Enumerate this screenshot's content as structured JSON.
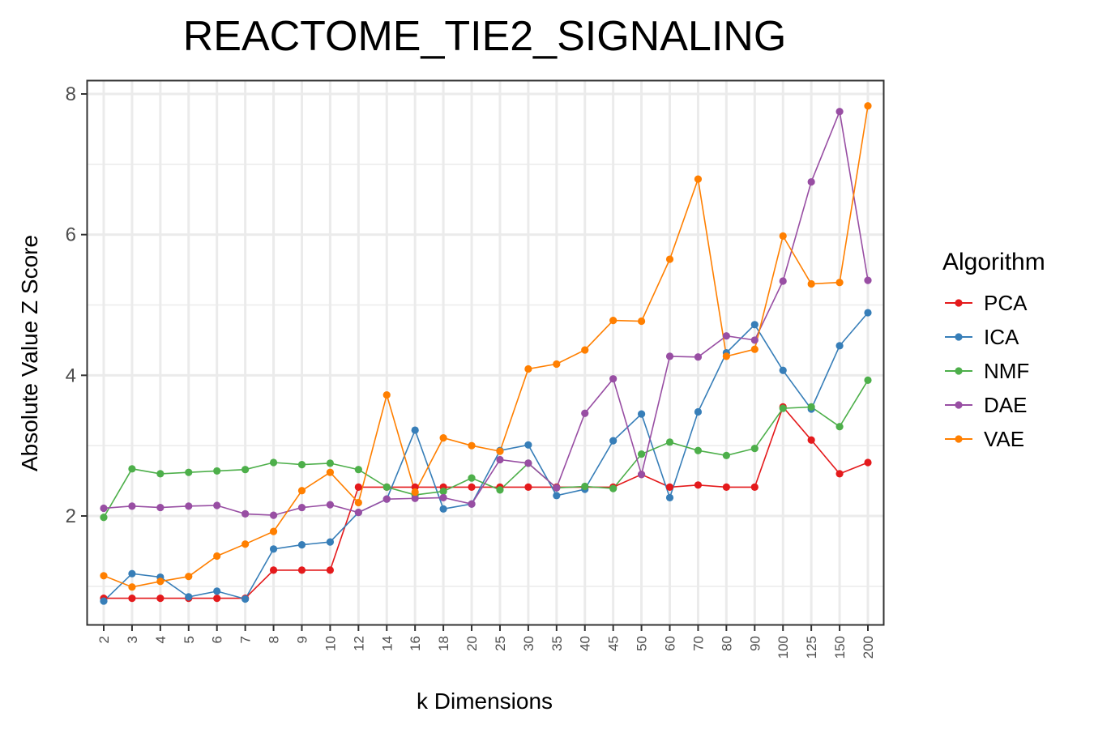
{
  "chart_data": {
    "type": "line",
    "title": "REACTOME_TIE2_SIGNALING",
    "xlabel": "k Dimensions",
    "ylabel": "Absolute Value Z Score",
    "categories": [
      "2",
      "3",
      "4",
      "5",
      "6",
      "7",
      "8",
      "9",
      "10",
      "12",
      "14",
      "16",
      "18",
      "20",
      "25",
      "30",
      "35",
      "40",
      "45",
      "50",
      "60",
      "70",
      "80",
      "90",
      "100",
      "125",
      "150",
      "200"
    ],
    "ylim": [
      0.5,
      8.2
    ],
    "yticks": [
      2,
      4,
      6,
      8
    ],
    "grid": true,
    "legend": {
      "title": "Algorithm",
      "position": "right"
    },
    "series": [
      {
        "name": "PCA",
        "color": "#e41a1c",
        "values": [
          0.83,
          0.83,
          0.83,
          0.83,
          0.83,
          0.83,
          1.23,
          1.23,
          1.23,
          2.41,
          2.41,
          2.41,
          2.41,
          2.41,
          2.41,
          2.41,
          2.41,
          2.41,
          2.41,
          2.59,
          2.41,
          2.44,
          2.41,
          2.41,
          3.55,
          3.08,
          2.6,
          2.76
        ]
      },
      {
        "name": "ICA",
        "color": "#377eb8",
        "values": [
          0.79,
          1.18,
          1.13,
          0.85,
          0.93,
          0.82,
          1.53,
          1.59,
          1.63,
          2.05,
          2.24,
          3.22,
          2.1,
          2.17,
          2.93,
          3.01,
          2.29,
          2.38,
          3.07,
          3.45,
          2.26,
          3.48,
          4.32,
          4.72,
          4.07,
          3.52,
          4.42,
          4.89
        ]
      },
      {
        "name": "NMF",
        "color": "#4daf4a",
        "values": [
          1.98,
          2.67,
          2.6,
          2.62,
          2.64,
          2.66,
          2.76,
          2.73,
          2.75,
          2.66,
          2.41,
          2.3,
          2.35,
          2.54,
          2.37,
          2.75,
          2.4,
          2.42,
          2.39,
          2.88,
          3.05,
          2.93,
          2.86,
          2.96,
          3.53,
          3.55,
          3.27,
          3.93
        ]
      },
      {
        "name": "DAE",
        "color": "#984ea3",
        "values": [
          2.11,
          2.14,
          2.12,
          2.14,
          2.15,
          2.03,
          2.01,
          2.12,
          2.16,
          2.05,
          2.24,
          2.25,
          2.26,
          2.17,
          2.8,
          2.75,
          2.4,
          3.46,
          3.95,
          2.59,
          4.27,
          4.26,
          4.56,
          4.5,
          5.34,
          6.75,
          7.75,
          5.35
        ]
      },
      {
        "name": "VAE",
        "color": "#ff7f00",
        "values": [
          1.15,
          0.99,
          1.07,
          1.14,
          1.43,
          1.6,
          1.78,
          2.36,
          2.62,
          2.19,
          3.72,
          2.34,
          3.11,
          3.0,
          2.92,
          4.09,
          4.16,
          4.36,
          4.78,
          4.77,
          5.65,
          6.79,
          4.27,
          4.37,
          5.98,
          5.3,
          5.32,
          7.83
        ]
      }
    ]
  }
}
